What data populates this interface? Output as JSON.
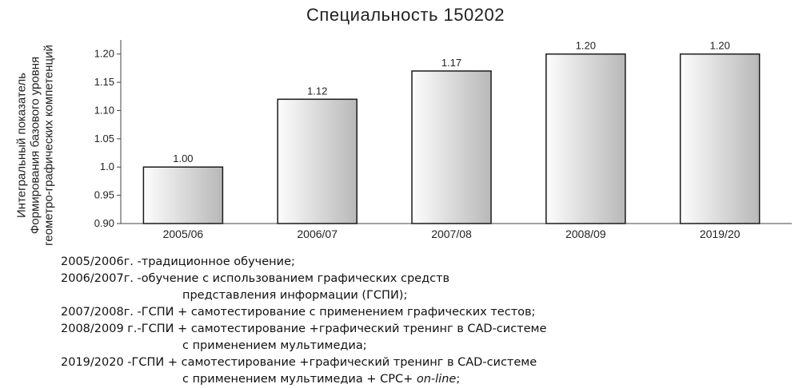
{
  "chart_data": {
    "type": "bar",
    "title": "Специальность  150202",
    "ylabel_lines": [
      "Интегральный показатель",
      "Формирования базового уровня",
      "геометро-графических компетенций"
    ],
    "xlabel": "",
    "categories": [
      "2005/06",
      "2006/07",
      "2007/08",
      "2008/09",
      "2019/20"
    ],
    "values": [
      1.0,
      1.12,
      1.17,
      1.2,
      1.2
    ],
    "value_labels": [
      "1.00",
      "1.12",
      "1.17",
      "1.20",
      "1.20"
    ],
    "y_ticks": [
      "0.90",
      "0.95",
      "1.0",
      "1.05",
      "1.10",
      "1.15",
      "1.20"
    ],
    "y_tick_values": [
      0.9,
      0.95,
      1.0,
      1.05,
      1.1,
      1.15,
      1.2
    ],
    "ylim": [
      0.9,
      1.225
    ],
    "grid": false,
    "colors": {
      "bar_light": "#fdfdfd",
      "bar_dark": "#b8b8b8",
      "bar_stroke": "#1a1a1a",
      "axis": "#444444"
    }
  },
  "legend": [
    {
      "year": "2005/2006г. - ",
      "text": "традиционное  обучение;",
      "cont": []
    },
    {
      "year": "2006/2007г. - ",
      "text": "обучение с использованием графических средств",
      "cont": [
        "представления информации  (ГСПИ);"
      ]
    },
    {
      "year": "2007/2008г. - ",
      "text": "ГСПИ + самотестирование с применением графических  тестов;",
      "cont": []
    },
    {
      "year": "2008/2009 г.- ",
      "text": "ГСПИ + самотестирование +графический тренинг в CAD-системе",
      "cont": [
        "с применением  мультимедиа;"
      ]
    },
    {
      "year": "2019/2020 - ",
      "text": "ГСПИ + самотестирование +графический тренинг в CAD-системе",
      "cont": [
        "с применением  мультимедиа + СРС+ on-line;"
      ]
    }
  ]
}
